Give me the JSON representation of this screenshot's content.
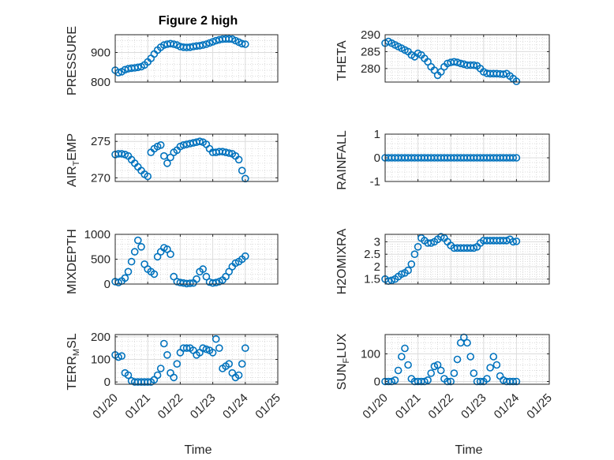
{
  "figure": {
    "title": "Figure 2 high",
    "xlabel": "Time",
    "xticks": [
      "01/20",
      "01/21",
      "01/22",
      "01/23",
      "01/24",
      "01/25"
    ],
    "marker_color": "#0072BD",
    "axes_color": "#262626",
    "grid": true,
    "minor_grid": true
  },
  "chart_data": [
    {
      "type": "scatter",
      "marker": "circle",
      "ylabel": "PRESSURE",
      "xlim": [
        0,
        5
      ],
      "ylim": [
        800,
        960
      ],
      "yticks": [
        {
          "v": 800,
          "t": "800"
        },
        {
          "v": 900,
          "t": "900"
        }
      ],
      "x": [
        0,
        0.1,
        0.2,
        0.3,
        0.4,
        0.5,
        0.6,
        0.7,
        0.8,
        0.9,
        1.0,
        1.1,
        1.2,
        1.3,
        1.4,
        1.5,
        1.6,
        1.7,
        1.8,
        1.9,
        2.0,
        2.1,
        2.2,
        2.3,
        2.4,
        2.5,
        2.6,
        2.7,
        2.8,
        2.9,
        3.0,
        3.1,
        3.2,
        3.3,
        3.4,
        3.5,
        3.6,
        3.7,
        3.8,
        3.9,
        4.0
      ],
      "y": [
        840,
        832,
        835,
        842,
        845,
        847,
        848,
        850,
        852,
        858,
        868,
        880,
        895,
        908,
        918,
        925,
        928,
        930,
        928,
        925,
        920,
        918,
        917,
        918,
        920,
        922,
        923,
        925,
        928,
        932,
        936,
        940,
        943,
        945,
        946,
        946,
        945,
        940,
        935,
        930,
        928
      ]
    },
    {
      "type": "scatter",
      "marker": "circle",
      "ylabel": "THETA",
      "xlim": [
        0,
        5
      ],
      "ylim": [
        276,
        290
      ],
      "yticks": [
        {
          "v": 280,
          "t": "280"
        },
        {
          "v": 285,
          "t": "285"
        },
        {
          "v": 290,
          "t": "290"
        }
      ],
      "x": [
        0,
        0.1,
        0.2,
        0.3,
        0.4,
        0.5,
        0.6,
        0.7,
        0.8,
        0.9,
        1.0,
        1.1,
        1.2,
        1.3,
        1.4,
        1.5,
        1.6,
        1.7,
        1.8,
        1.9,
        2.0,
        2.1,
        2.2,
        2.3,
        2.4,
        2.5,
        2.6,
        2.7,
        2.8,
        2.9,
        3.0,
        3.1,
        3.2,
        3.3,
        3.4,
        3.5,
        3.6,
        3.7,
        3.8,
        3.9,
        4.0
      ],
      "y": [
        287.5,
        288,
        287.5,
        287,
        286.5,
        286,
        285.5,
        285,
        284,
        283.5,
        284.5,
        284,
        283,
        282,
        280.5,
        279.5,
        278,
        279,
        280.5,
        281.5,
        281.8,
        282,
        281.8,
        281.5,
        281.3,
        281,
        281,
        281,
        280.8,
        280,
        279,
        278.6,
        278.5,
        278.5,
        278.5,
        278.4,
        278.3,
        278.5,
        277.8,
        277,
        276.2
      ]
    },
    {
      "type": "scatter",
      "marker": "circle",
      "ylabel": "AIR_TEMP",
      "xlim": [
        0,
        5
      ],
      "ylim": [
        269.5,
        276
      ],
      "yticks": [
        {
          "v": 270,
          "t": "270"
        },
        {
          "v": 275,
          "t": "275"
        }
      ],
      "x": [
        0,
        0.1,
        0.2,
        0.3,
        0.4,
        0.5,
        0.6,
        0.7,
        0.8,
        0.9,
        1.0,
        1.1,
        1.2,
        1.3,
        1.4,
        1.5,
        1.6,
        1.7,
        1.8,
        1.9,
        2.0,
        2.1,
        2.2,
        2.3,
        2.4,
        2.5,
        2.6,
        2.7,
        2.8,
        2.9,
        3.0,
        3.1,
        3.2,
        3.3,
        3.4,
        3.5,
        3.6,
        3.7,
        3.8,
        3.9,
        4.0
      ],
      "y": [
        273.2,
        273.3,
        273.3,
        273.2,
        273,
        272.5,
        272,
        271.5,
        271,
        270.5,
        270.2,
        273.5,
        274,
        274.3,
        274.5,
        273,
        272,
        272.8,
        273.5,
        273.8,
        274.3,
        274.5,
        274.6,
        274.7,
        274.8,
        274.9,
        275,
        274.9,
        274.6,
        274,
        273.5,
        273.5,
        273.6,
        273.6,
        273.5,
        273.4,
        273.3,
        273,
        272.5,
        271,
        269.9
      ]
    },
    {
      "type": "scatter",
      "marker": "circle",
      "ylabel": "RAINFALL",
      "xlim": [
        0,
        5
      ],
      "ylim": [
        -1,
        1
      ],
      "yticks": [
        {
          "v": -1,
          "t": "-1"
        },
        {
          "v": 0,
          "t": "0"
        },
        {
          "v": 1,
          "t": "1"
        }
      ],
      "x": [
        0,
        0.1,
        0.2,
        0.3,
        0.4,
        0.5,
        0.6,
        0.7,
        0.8,
        0.9,
        1.0,
        1.1,
        1.2,
        1.3,
        1.4,
        1.5,
        1.6,
        1.7,
        1.8,
        1.9,
        2.0,
        2.1,
        2.2,
        2.3,
        2.4,
        2.5,
        2.6,
        2.7,
        2.8,
        2.9,
        3.0,
        3.1,
        3.2,
        3.3,
        3.4,
        3.5,
        3.6,
        3.7,
        3.8,
        3.9,
        4.0
      ],
      "y": [
        0,
        0,
        0,
        0,
        0,
        0,
        0,
        0,
        0,
        0,
        0,
        0,
        0,
        0,
        0,
        0,
        0,
        0,
        0,
        0,
        0,
        0,
        0,
        0,
        0,
        0,
        0,
        0,
        0,
        0,
        0,
        0,
        0,
        0,
        0,
        0,
        0,
        0,
        0,
        0,
        0
      ]
    },
    {
      "type": "scatter",
      "marker": "circle",
      "ylabel": "MIXDEPTH",
      "xlim": [
        0,
        5
      ],
      "ylim": [
        0,
        1000
      ],
      "yticks": [
        {
          "v": 0,
          "t": "0"
        },
        {
          "v": 500,
          "t": "500"
        },
        {
          "v": 1000,
          "t": "1000"
        }
      ],
      "x": [
        0,
        0.1,
        0.2,
        0.3,
        0.4,
        0.5,
        0.6,
        0.7,
        0.8,
        0.9,
        1.0,
        1.1,
        1.2,
        1.3,
        1.4,
        1.5,
        1.6,
        1.7,
        1.8,
        1.9,
        2.0,
        2.1,
        2.2,
        2.3,
        2.4,
        2.5,
        2.6,
        2.7,
        2.8,
        2.9,
        3.0,
        3.1,
        3.2,
        3.3,
        3.4,
        3.5,
        3.6,
        3.7,
        3.8,
        3.9,
        4.0
      ],
      "y": [
        50,
        30,
        60,
        120,
        250,
        450,
        650,
        880,
        750,
        400,
        300,
        250,
        200,
        550,
        650,
        730,
        700,
        600,
        150,
        50,
        30,
        20,
        10,
        15,
        20,
        100,
        250,
        300,
        150,
        40,
        20,
        30,
        50,
        80,
        150,
        250,
        350,
        420,
        450,
        500,
        560
      ]
    },
    {
      "type": "scatter",
      "marker": "circle",
      "ylabel": "H2OMIXRA",
      "xlim": [
        0,
        5
      ],
      "ylim": [
        1.3,
        3.3
      ],
      "yticks": [
        {
          "v": 1.5,
          "t": "1.5"
        },
        {
          "v": 2,
          "t": "2"
        },
        {
          "v": 2.5,
          "t": "2.5"
        },
        {
          "v": 3,
          "t": "3"
        }
      ],
      "x": [
        0,
        0.1,
        0.2,
        0.3,
        0.4,
        0.5,
        0.6,
        0.7,
        0.8,
        0.9,
        1.0,
        1.1,
        1.2,
        1.3,
        1.4,
        1.5,
        1.6,
        1.7,
        1.8,
        1.9,
        2.0,
        2.1,
        2.2,
        2.3,
        2.4,
        2.5,
        2.6,
        2.7,
        2.8,
        2.9,
        3.0,
        3.1,
        3.2,
        3.3,
        3.4,
        3.5,
        3.6,
        3.7,
        3.8,
        3.9,
        4.0
      ],
      "y": [
        1.5,
        1.42,
        1.45,
        1.5,
        1.6,
        1.7,
        1.75,
        1.85,
        2.1,
        2.5,
        2.8,
        3.15,
        3.05,
        2.95,
        2.95,
        3.0,
        3.1,
        3.2,
        3.15,
        3.0,
        2.85,
        2.75,
        2.75,
        2.75,
        2.75,
        2.75,
        2.75,
        2.75,
        2.8,
        2.95,
        3.05,
        3.05,
        3.05,
        3.05,
        3.05,
        3.05,
        3.05,
        3.05,
        3.1,
        3.0,
        3.02
      ]
    },
    {
      "type": "scatter",
      "marker": "circle",
      "ylabel": "TERR_MSL",
      "xlim": [
        0,
        5
      ],
      "ylim": [
        -10,
        210
      ],
      "yticks": [
        {
          "v": 0,
          "t": "0"
        },
        {
          "v": 100,
          "t": "100"
        },
        {
          "v": 200,
          "t": "200"
        }
      ],
      "x": [
        0,
        0.1,
        0.2,
        0.3,
        0.4,
        0.5,
        0.6,
        0.7,
        0.8,
        0.9,
        1.0,
        1.1,
        1.2,
        1.3,
        1.4,
        1.5,
        1.6,
        1.7,
        1.8,
        1.9,
        2.0,
        2.1,
        2.2,
        2.3,
        2.4,
        2.5,
        2.6,
        2.7,
        2.8,
        2.9,
        3.0,
        3.1,
        3.2,
        3.3,
        3.4,
        3.5,
        3.6,
        3.7,
        3.8,
        3.9,
        4.0
      ],
      "y": [
        120,
        110,
        115,
        40,
        30,
        5,
        0,
        0,
        0,
        0,
        0,
        0,
        10,
        30,
        60,
        170,
        120,
        40,
        20,
        80,
        130,
        150,
        150,
        150,
        140,
        120,
        130,
        150,
        145,
        140,
        130,
        190,
        150,
        60,
        70,
        80,
        40,
        20,
        30,
        80,
        150
      ]
    },
    {
      "type": "scatter",
      "marker": "circle",
      "ylabel": "SUN_FLUX",
      "xlim": [
        0,
        5
      ],
      "ylim": [
        -10,
        170
      ],
      "yticks": [
        {
          "v": 0,
          "t": "0"
        },
        {
          "v": 100,
          "t": "100"
        }
      ],
      "x": [
        0,
        0.1,
        0.2,
        0.3,
        0.4,
        0.5,
        0.6,
        0.7,
        0.8,
        0.9,
        1.0,
        1.1,
        1.2,
        1.3,
        1.4,
        1.5,
        1.6,
        1.7,
        1.8,
        1.9,
        2.0,
        2.1,
        2.2,
        2.3,
        2.4,
        2.5,
        2.6,
        2.7,
        2.8,
        2.9,
        3.0,
        3.1,
        3.2,
        3.3,
        3.4,
        3.5,
        3.6,
        3.7,
        3.8,
        3.9,
        4.0
      ],
      "y": [
        0,
        0,
        0,
        5,
        40,
        90,
        120,
        60,
        10,
        0,
        0,
        0,
        0,
        5,
        30,
        55,
        60,
        40,
        10,
        0,
        0,
        30,
        80,
        140,
        160,
        140,
        90,
        30,
        0,
        0,
        0,
        10,
        50,
        90,
        60,
        20,
        5,
        0,
        0,
        0,
        0
      ]
    }
  ]
}
